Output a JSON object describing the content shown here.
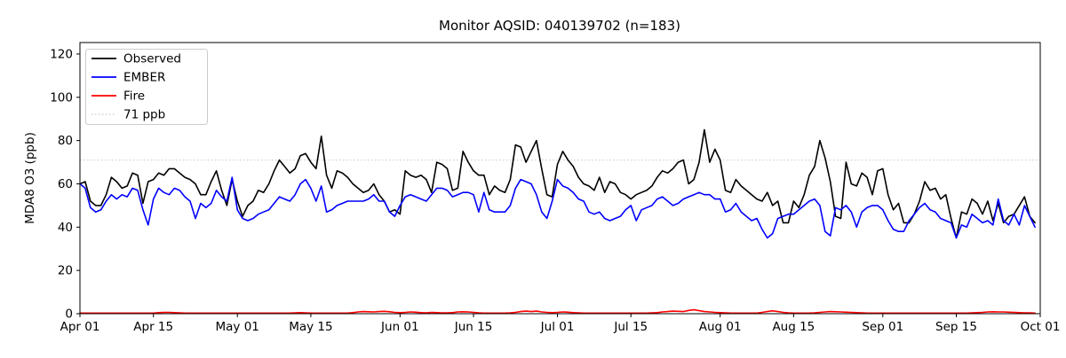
{
  "title": "Monitor AQSID: 040139702 (n=183)",
  "axes": {
    "ylabel": "MDA8 O3 (ppb)",
    "yticks": [
      0,
      20,
      40,
      60,
      80,
      100,
      120
    ],
    "xtick_labels": [
      "Apr 01",
      "Apr 15",
      "May 01",
      "May 15",
      "Jun 01",
      "Jun 15",
      "Jul 01",
      "Jul 15",
      "Aug 01",
      "Aug 15",
      "Sep 01",
      "Sep 15",
      "Oct 01"
    ]
  },
  "legend": {
    "items": [
      {
        "label": "Observed",
        "color": "#000000",
        "style": "solid"
      },
      {
        "label": "EMBER",
        "color": "#0000ff",
        "style": "solid"
      },
      {
        "label": "Fire",
        "color": "#ff0000",
        "style": "solid"
      },
      {
        "label": "71 ppb",
        "color": "#d3d3d3",
        "style": "dotted"
      }
    ]
  },
  "chart_data": {
    "type": "line",
    "title": "Monitor AQSID: 040139702 (n=183)",
    "xlabel": "",
    "ylabel": "MDA8 O3 (ppb)",
    "ylim": [
      0,
      125.3
    ],
    "yticks": [
      0,
      20,
      40,
      60,
      80,
      100,
      120
    ],
    "x_axis": {
      "unit": "days since Apr 01",
      "range": [
        0,
        183
      ]
    },
    "xticks": [
      {
        "label": "Apr 01",
        "day": 0
      },
      {
        "label": "Apr 15",
        "day": 14
      },
      {
        "label": "May 01",
        "day": 30
      },
      {
        "label": "May 15",
        "day": 44
      },
      {
        "label": "Jun 01",
        "day": 61
      },
      {
        "label": "Jun 15",
        "day": 75
      },
      {
        "label": "Jul 01",
        "day": 91
      },
      {
        "label": "Jul 15",
        "day": 105
      },
      {
        "label": "Aug 01",
        "day": 122
      },
      {
        "label": "Aug 15",
        "day": 136
      },
      {
        "label": "Sep 01",
        "day": 153
      },
      {
        "label": "Sep 15",
        "day": 167
      },
      {
        "label": "Oct 01",
        "day": 183
      }
    ],
    "threshold": {
      "label": "71 ppb",
      "value": 71,
      "color": "#d3d3d3",
      "style": "dotted"
    },
    "legend_position": "upper left",
    "grid": false,
    "series": [
      {
        "name": "Observed",
        "color": "#000000",
        "values": [
          60,
          61,
          52,
          50,
          50,
          55,
          63,
          61,
          58,
          59,
          65,
          64,
          51,
          61,
          62,
          65,
          64,
          67,
          67,
          65,
          63,
          62,
          60,
          55,
          55,
          61,
          66,
          57,
          50,
          62,
          52,
          45,
          50,
          52,
          57,
          56,
          60,
          66,
          71,
          68,
          65,
          67,
          73,
          74,
          70,
          67,
          82,
          64,
          58,
          66,
          65,
          63,
          60,
          58,
          56,
          57,
          60,
          55,
          52,
          47,
          48,
          46,
          66,
          64,
          63,
          64,
          62,
          56,
          70,
          69,
          67,
          57,
          58,
          75,
          70,
          66,
          64,
          64,
          55,
          59,
          57,
          56,
          62,
          78,
          77,
          70,
          75,
          80,
          67,
          55,
          54,
          69,
          75,
          71,
          68,
          63,
          60,
          59,
          57,
          63,
          56,
          61,
          60,
          56,
          55,
          53,
          55,
          56,
          57,
          59,
          63,
          66,
          65,
          67,
          70,
          71,
          60,
          62,
          70,
          85,
          70,
          76,
          71,
          57,
          56,
          62,
          59,
          57,
          55,
          53,
          52,
          56,
          50,
          52,
          42,
          42,
          52,
          49,
          55,
          64,
          68,
          80,
          72,
          61,
          45,
          44,
          70,
          60,
          59,
          65,
          63,
          55,
          66,
          67,
          55,
          48,
          51,
          42,
          42,
          46,
          52,
          61,
          57,
          58,
          53,
          55,
          44,
          35,
          47,
          46,
          53,
          51,
          46,
          52,
          43,
          51,
          42,
          45,
          46,
          50,
          54,
          45,
          42
        ]
      },
      {
        "name": "EMBER",
        "color": "#0000ff",
        "values": [
          60,
          58,
          49,
          47,
          48,
          52,
          55,
          53,
          55,
          54,
          58,
          57,
          48,
          41,
          53,
          58,
          56,
          55,
          58,
          57,
          54,
          52,
          44,
          51,
          49,
          51,
          57,
          54,
          52,
          63,
          48,
          44,
          43,
          44,
          46,
          47,
          48,
          51,
          54,
          53,
          52,
          55,
          60,
          62,
          58,
          52,
          59,
          47,
          48,
          50,
          51,
          52,
          52,
          52,
          52,
          53,
          55,
          52,
          52,
          47,
          45,
          50,
          54,
          55,
          54,
          53,
          52,
          55,
          58,
          58,
          57,
          54,
          55,
          56,
          56,
          55,
          47,
          56,
          48,
          47,
          47,
          47,
          50,
          58,
          62,
          61,
          60,
          55,
          47,
          44,
          52,
          62,
          59,
          58,
          56,
          53,
          52,
          47,
          46,
          47,
          44,
          43,
          44,
          45,
          48,
          50,
          43,
          48,
          49,
          50,
          53,
          54,
          52,
          50,
          51,
          53,
          54,
          55,
          56,
          55,
          55,
          53,
          53,
          47,
          48,
          51,
          47,
          45,
          43,
          44,
          39,
          35,
          37,
          44,
          45,
          46,
          46,
          48,
          50,
          52,
          53,
          50,
          38,
          36,
          49,
          48,
          50,
          47,
          40,
          47,
          49,
          50,
          50,
          48,
          43,
          39,
          38,
          38,
          43,
          46,
          49,
          51,
          48,
          47,
          44,
          43,
          42,
          35,
          41,
          40,
          46,
          44,
          42,
          43,
          41,
          53,
          43,
          41,
          46,
          41,
          50,
          45,
          40
        ]
      },
      {
        "name": "Fire",
        "color": "#ff0000",
        "values": [
          0.3,
          0.3,
          0.3,
          0.3,
          0.3,
          0.3,
          0.3,
          0.3,
          0.3,
          0.3,
          0.3,
          0.3,
          0.3,
          0.3,
          0.3,
          0.5,
          0.6,
          0.6,
          0.5,
          0.4,
          0.3,
          0.3,
          0.3,
          0.3,
          0.3,
          0.3,
          0.3,
          0.3,
          0.3,
          0.3,
          0.3,
          0.3,
          0.3,
          0.3,
          0.3,
          0.3,
          0.3,
          0.3,
          0.3,
          0.3,
          0.3,
          0.4,
          0.5,
          0.4,
          0.3,
          0.3,
          0.3,
          0.3,
          0.3,
          0.3,
          0.3,
          0.3,
          0.5,
          0.8,
          1.0,
          0.9,
          0.8,
          1.0,
          1.1,
          0.9,
          0.6,
          0.5,
          0.6,
          0.8,
          0.7,
          0.5,
          0.4,
          0.6,
          0.5,
          0.4,
          0.4,
          0.5,
          0.8,
          0.9,
          0.8,
          0.6,
          0.4,
          0.3,
          0.3,
          0.3,
          0.3,
          0.3,
          0.4,
          0.6,
          1.0,
          1.2,
          1.0,
          1.2,
          0.8,
          0.6,
          0.5,
          0.6,
          0.8,
          0.7,
          0.5,
          0.4,
          0.3,
          0.3,
          0.3,
          0.3,
          0.3,
          0.3,
          0.3,
          0.3,
          0.3,
          0.3,
          0.3,
          0.3,
          0.3,
          0.4,
          0.5,
          0.8,
          1.0,
          1.2,
          1.1,
          1.0,
          1.5,
          1.8,
          1.4,
          1.0,
          0.8,
          0.6,
          0.5,
          0.4,
          0.3,
          0.3,
          0.3,
          0.3,
          0.3,
          0.3,
          0.6,
          1.0,
          1.3,
          1.0,
          0.6,
          0.4,
          0.3,
          0.3,
          0.3,
          0.3,
          0.4,
          0.6,
          0.8,
          1.0,
          0.9,
          0.8,
          0.7,
          0.6,
          0.5,
          0.4,
          0.3,
          0.3,
          0.3,
          0.3,
          0.3,
          0.3,
          0.3,
          0.3,
          0.3,
          0.3,
          0.3,
          0.3,
          0.3,
          0.3,
          0.3,
          0.3,
          0.3,
          0.3,
          0.3,
          0.3,
          0.4,
          0.5,
          0.6,
          0.8,
          0.9,
          0.8,
          0.8,
          0.7,
          0.6,
          0.5,
          0.4,
          0.4,
          0.3
        ]
      }
    ]
  }
}
